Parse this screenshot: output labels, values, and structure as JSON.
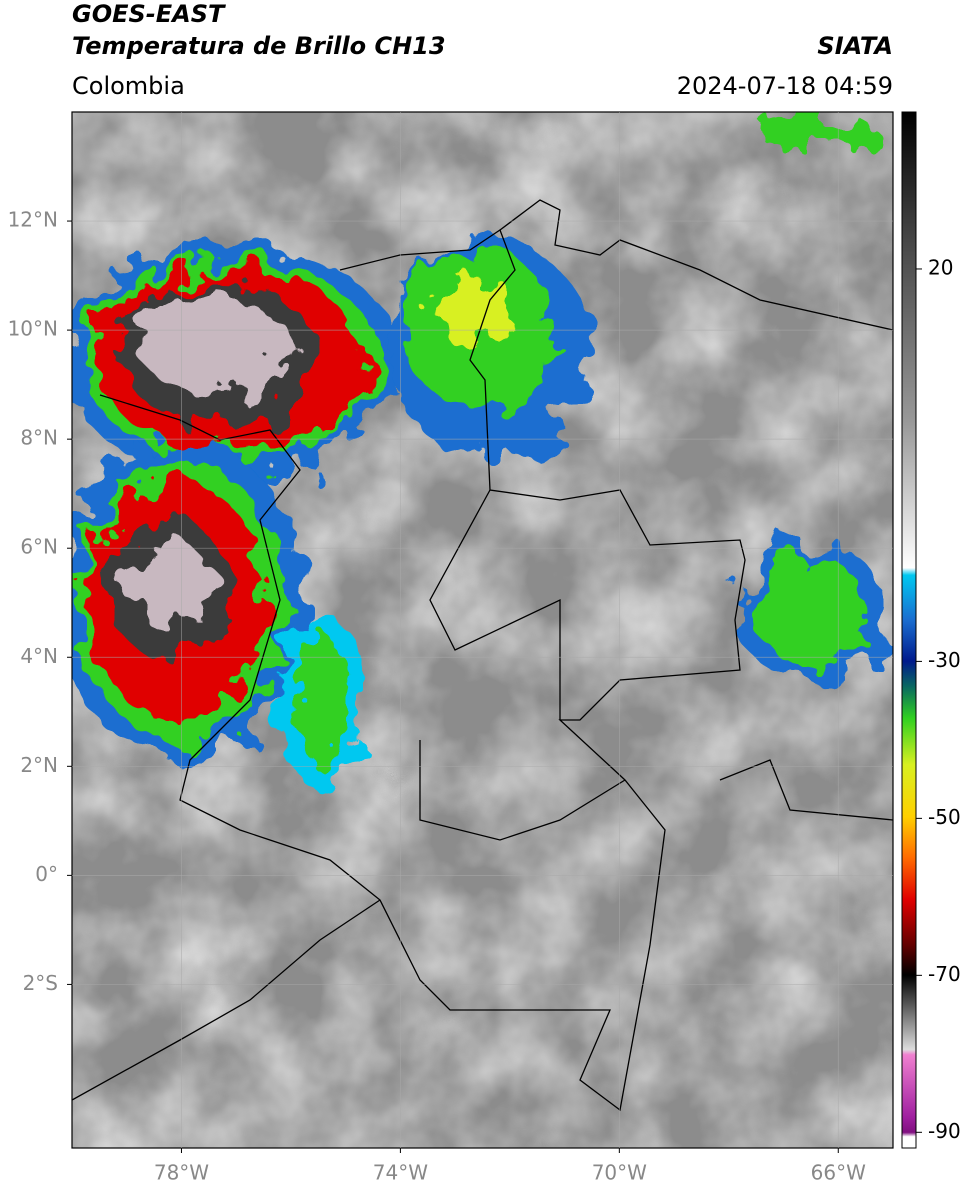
{
  "header": {
    "title": "GOES-EAST",
    "subtitle": "Temperatura de Brillo CH13",
    "region": "Colombia",
    "source": "SIATA",
    "timestamp": "2024-07-18 04:59"
  },
  "map": {
    "type": "map",
    "xlim": [
      -80,
      -65
    ],
    "ylim": [
      -5,
      14
    ],
    "xticks": [
      {
        "value": -78,
        "label": "78°W"
      },
      {
        "value": -74,
        "label": "74°W"
      },
      {
        "value": -70,
        "label": "70°W"
      },
      {
        "value": -66,
        "label": "66°W"
      }
    ],
    "yticks": [
      {
        "value": 12,
        "label": "12°N"
      },
      {
        "value": 10,
        "label": "10°N"
      },
      {
        "value": 8,
        "label": "8°N"
      },
      {
        "value": 6,
        "label": "6°N"
      },
      {
        "value": 4,
        "label": "4°N"
      },
      {
        "value": 2,
        "label": "2°N"
      },
      {
        "value": 0,
        "label": "0°"
      },
      {
        "value": -2,
        "label": "2°S"
      }
    ],
    "grid": true
  },
  "colorbar": {
    "lim": [
      -92,
      40
    ],
    "ticks": [
      20,
      -30,
      -50,
      -70,
      -90
    ]
  }
}
